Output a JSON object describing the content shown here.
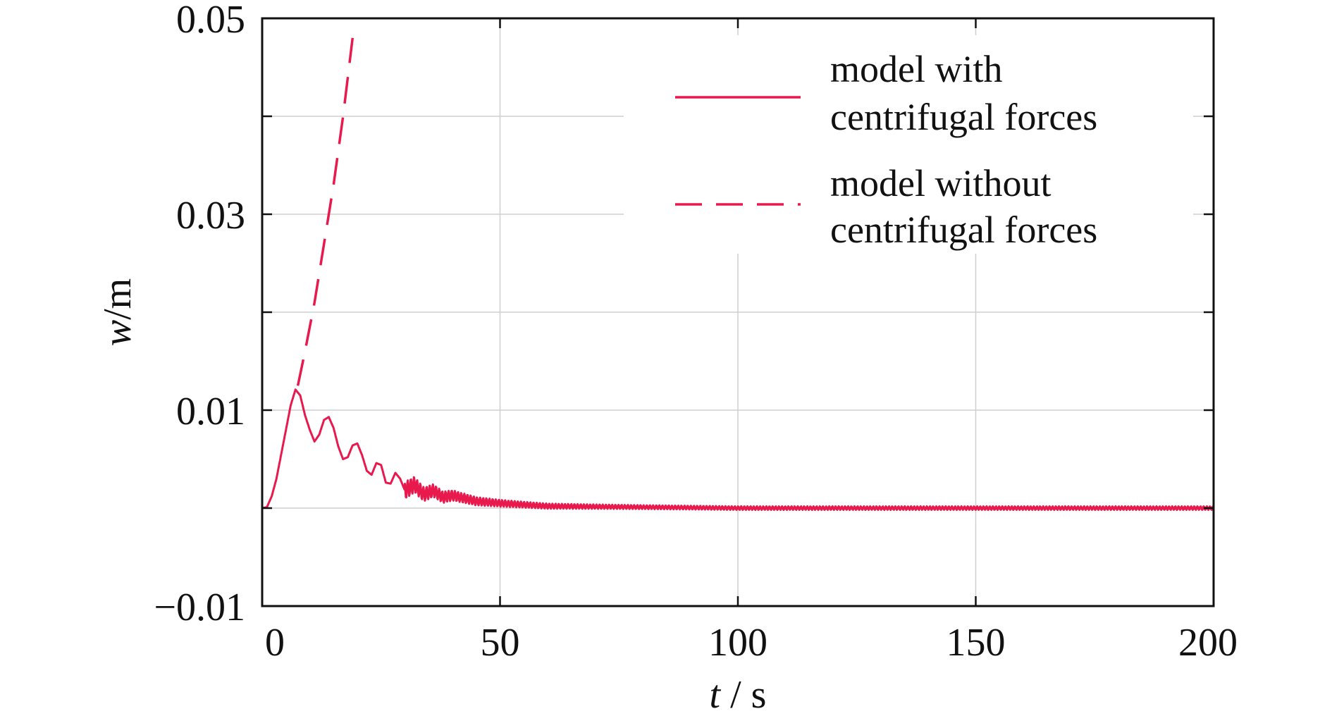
{
  "chart_data": {
    "type": "line",
    "title": "",
    "xlabel": {
      "symbol": "t",
      "unit": " / s"
    },
    "ylabel": {
      "symbol": "w",
      "unit": "/m"
    },
    "xlim": [
      0,
      200
    ],
    "ylim": [
      -0.01,
      0.05
    ],
    "x_ticks": [
      0,
      50,
      100,
      150,
      200
    ],
    "x_tick_labels": [
      "0",
      "50",
      "100",
      "150",
      "200"
    ],
    "y_ticks": [
      -0.01,
      0,
      0.01,
      0.02,
      0.03,
      0.04,
      0.05
    ],
    "y_tick_labels": [
      "−0.01",
      "",
      "0.01",
      "",
      "0.03",
      "",
      "0.05"
    ],
    "grid": true,
    "legend_position": "top-right",
    "series": [
      {
        "name": "model with\ncentrifugal forces",
        "legend_lines": [
          "model with",
          "centrifugal forces"
        ],
        "style": "solid",
        "color": "#e8194c",
        "x": [
          0,
          1,
          2,
          3,
          4,
          5,
          6,
          7,
          8,
          9,
          10,
          11,
          12,
          13,
          14,
          15,
          16,
          17,
          18,
          19,
          20,
          21,
          22,
          23,
          24,
          25,
          26,
          27,
          28,
          29,
          30,
          32,
          34,
          36,
          38,
          40,
          45,
          50,
          60,
          80,
          100,
          120,
          150,
          180,
          200
        ],
        "y": [
          0,
          0.0001,
          0.0012,
          0.003,
          0.0055,
          0.008,
          0.0105,
          0.0121,
          0.0115,
          0.0095,
          0.008,
          0.0068,
          0.0075,
          0.009,
          0.0093,
          0.0082,
          0.0063,
          0.005,
          0.0052,
          0.0064,
          0.0066,
          0.0054,
          0.0038,
          0.0034,
          0.0046,
          0.0044,
          0.0026,
          0.0025,
          0.0036,
          0.003,
          0.0018,
          0.0024,
          0.0014,
          0.0018,
          0.0011,
          0.0013,
          0.0007,
          0.0005,
          0.0002,
          0.0001,
          0,
          0,
          0,
          0,
          0
        ]
      },
      {
        "name": "model without\ncentrifugal forces",
        "legend_lines": [
          "model without",
          "centrifugal forces"
        ],
        "style": "dashed",
        "color": "#e8194c",
        "x": [
          7.5,
          9,
          11,
          13,
          15,
          17,
          19
        ],
        "y": [
          0.0125,
          0.016,
          0.021,
          0.027,
          0.033,
          0.04,
          0.048
        ]
      }
    ]
  }
}
